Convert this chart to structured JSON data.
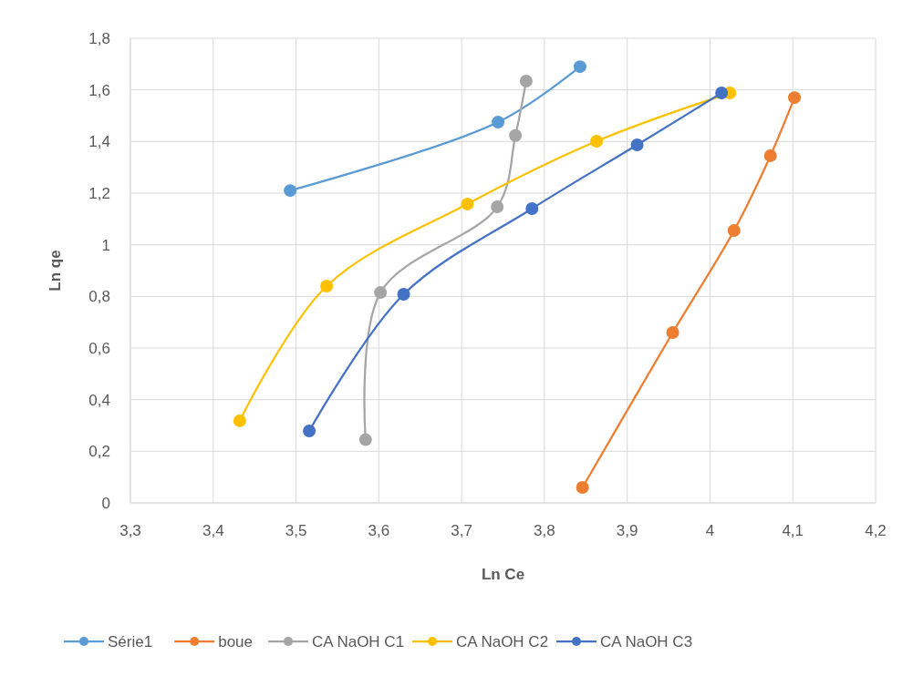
{
  "chart_data": {
    "type": "line",
    "xlabel": "Ln Ce",
    "ylabel": "Ln qe",
    "xlim": [
      3.3,
      4.2
    ],
    "ylim": [
      0,
      1.8
    ],
    "xticks": [
      {
        "value": 3.3,
        "label": "3,3"
      },
      {
        "value": 3.4,
        "label": "3,4"
      },
      {
        "value": 3.5,
        "label": "3,5"
      },
      {
        "value": 3.6,
        "label": "3,6"
      },
      {
        "value": 3.7,
        "label": "3,7"
      },
      {
        "value": 3.8,
        "label": "3,8"
      },
      {
        "value": 3.9,
        "label": "3,9"
      },
      4,
      {
        "value": 4.1,
        "label": "4,1"
      },
      {
        "value": 4.2,
        "label": "4,2"
      }
    ],
    "yticks": [
      0,
      {
        "value": 0.2,
        "label": "0,2"
      },
      {
        "value": 0.4,
        "label": "0,4"
      },
      {
        "value": 0.6,
        "label": "0,6"
      },
      {
        "value": 0.8,
        "label": "0,8"
      },
      1,
      {
        "value": 1.2,
        "label": "1,2"
      },
      {
        "value": 1.4,
        "label": "1,4"
      },
      {
        "value": 1.6,
        "label": "1,6"
      },
      {
        "value": 1.8,
        "label": "1,8"
      }
    ],
    "grid": true,
    "legend": "bottom",
    "marker": "circle",
    "line_style": "solid",
    "series": [
      {
        "name": "Série1",
        "color": "#5b9bd5",
        "x": [
          3.493,
          3.744,
          3.843
        ],
        "values": [
          1.21,
          1.475,
          1.69
        ]
      },
      {
        "name": "boue",
        "color": "#ed7d31",
        "x": [
          3.846,
          3.955,
          4.029,
          4.073,
          4.102
        ],
        "values": [
          0.06,
          0.66,
          1.055,
          1.345,
          1.57
        ]
      },
      {
        "name": "CA NaOH C1",
        "color": "#a5a5a5",
        "x": [
          3.584,
          3.602,
          3.743,
          3.765,
          3.778
        ],
        "values": [
          0.245,
          0.815,
          1.147,
          1.423,
          1.634
        ]
      },
      {
        "name": "CA NaOH C2",
        "color": "#ffc000",
        "x": [
          3.432,
          3.537,
          3.707,
          3.863,
          4.024
        ],
        "values": [
          0.318,
          0.84,
          1.158,
          1.401,
          1.588
        ]
      },
      {
        "name": "CA NaOH C3",
        "color": "#4472c4",
        "x": [
          3.516,
          3.63,
          3.785,
          3.912,
          4.014
        ],
        "values": [
          0.279,
          0.808,
          1.14,
          1.387,
          1.588
        ]
      }
    ]
  }
}
